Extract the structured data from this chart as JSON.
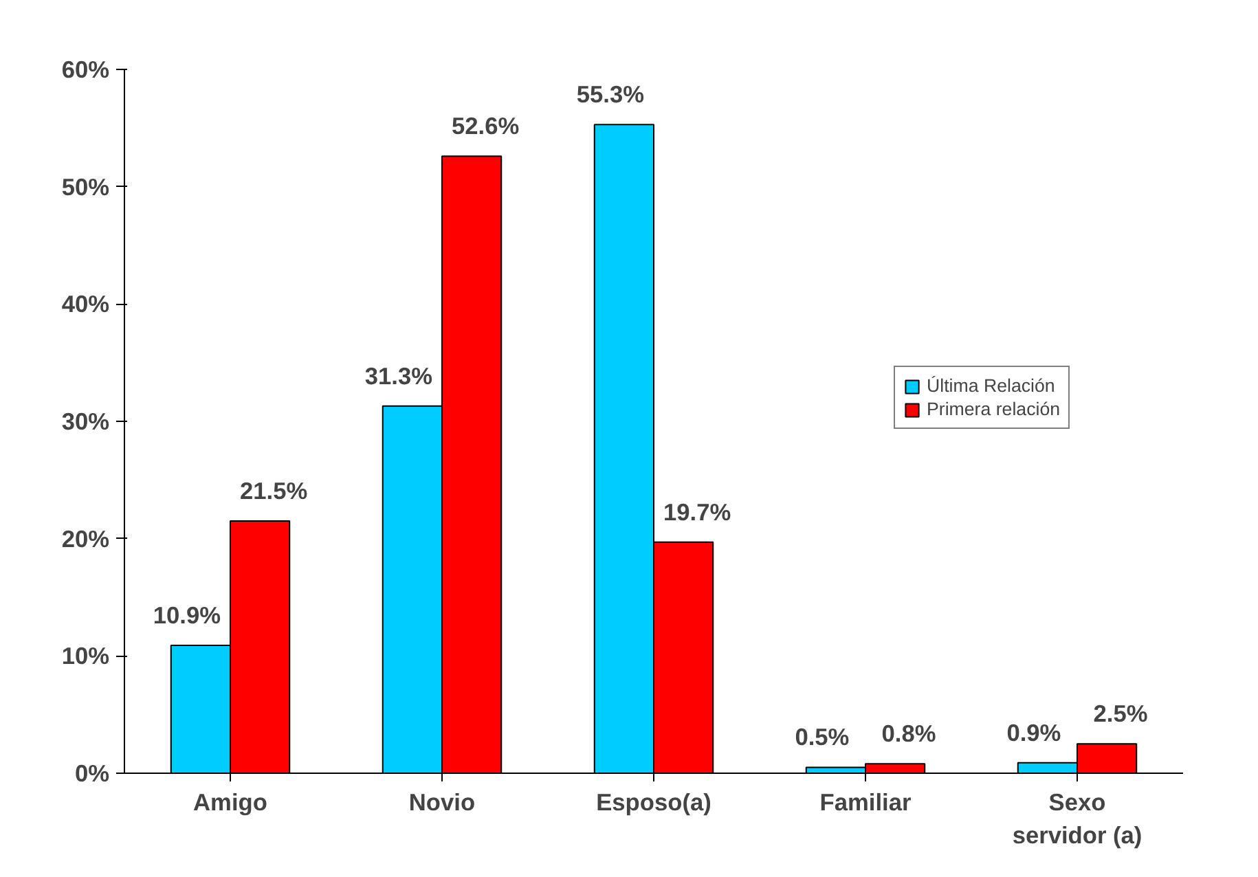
{
  "chart_data": {
    "type": "bar",
    "categories": [
      "Amigo",
      "Novio",
      "Esposo(a)",
      "Familiar",
      "Sexo servidor (a)"
    ],
    "series": [
      {
        "name": "Última Relación",
        "color": "#00ccff",
        "values": [
          10.9,
          31.3,
          55.3,
          0.5,
          0.9
        ],
        "value_labels": [
          "10.9%",
          "31.3%",
          "55.3%",
          "0.5%",
          "0.9%"
        ]
      },
      {
        "name": "Primera relación",
        "color": "#ff0000",
        "values": [
          21.5,
          52.6,
          19.7,
          0.8,
          2.5
        ],
        "value_labels": [
          "21.5%",
          "52.6%",
          "19.7%",
          "0.8%",
          "2.5%"
        ]
      }
    ],
    "ylim": [
      0,
      60
    ],
    "yticks": [
      {
        "value": 0,
        "label": "0%"
      },
      {
        "value": 10,
        "label": "10%"
      },
      {
        "value": 20,
        "label": "20%"
      },
      {
        "value": 30,
        "label": "30%"
      },
      {
        "value": 40,
        "label": "40%"
      },
      {
        "value": 50,
        "label": "50%"
      },
      {
        "value": 60,
        "label": "60%"
      }
    ],
    "grid": false,
    "legend": "right"
  }
}
